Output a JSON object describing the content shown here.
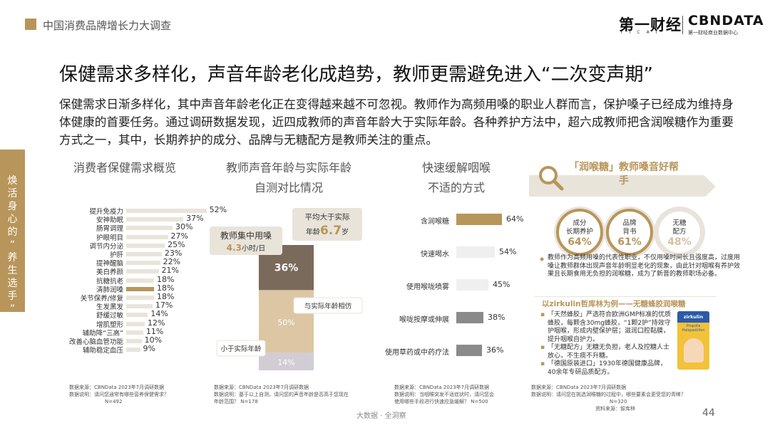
{
  "header": {
    "report_title": "中国消费品牌增长力大调查",
    "logo_yicai": "第一财经",
    "logo_yicai_sub": "YICAI",
    "logo_cbn": "CBNDATA",
    "logo_cbn_sub": "第一财经商业数据中心"
  },
  "headline": "保健需求多样化，声音年龄老化成趋势，教师更需避免进入“二次变声期”",
  "intro": "保健需求日渐多样化，其中声音年龄老化正在变得越来越不可忽视。教师作为高频用嗓的职业人群而言，保护嗓子已经成为维持身体健康的首要任务。通过调研数据发现，近四成教师的声音年龄大于实际年龄。各种养护方法中，超六成教师把含润喉糖作为重要方式之一，其中，长期养护的成分、品牌与无糖配方是教师关注的重点。",
  "side_tab": "焕活身心的“养生选手”",
  "chart_data": [
    {
      "type": "bar",
      "title": "消费者保健需求概览",
      "categories": [
        "提升免疫力",
        "安神助眠",
        "肠胃调理",
        "护眼明目",
        "调节内分泌",
        "护肝",
        "提神醒脑",
        "美白养颜",
        "抗糖抗老",
        "清肺润嗓",
        "关节保养/修复",
        "生发黑发",
        "舒缓过敏",
        "增肌塑形",
        "辅助降“三高”",
        "改善心脑血管功能",
        "辅助稳定血压"
      ],
      "values": [
        52,
        37,
        30,
        27,
        25,
        23,
        22,
        21,
        18,
        18,
        18,
        17,
        14,
        12,
        11,
        10,
        9
      ],
      "value_labels": [
        "52%",
        "37%",
        "30%",
        "27%",
        "25%",
        "23%",
        "22%",
        "21%",
        "18%",
        "18%",
        "18%",
        "17%",
        "14%",
        "12%",
        "11%",
        "10%",
        "9%"
      ],
      "highlight": "清肺润嗓",
      "note": [
        "数据来源：CBNData 2023年7月调研数据",
        "数据说明：请问您通常有哪些营养保健需求？",
        "N=492"
      ]
    },
    {
      "type": "bar",
      "title": "教师声音年龄与实际年龄自测对比情况",
      "categories": [
        "与实际年龄相仿",
        "大于实际年龄",
        "小于实际年龄"
      ],
      "values": [
        50,
        36,
        14
      ],
      "value_labels": [
        "50%",
        "36%",
        "14%"
      ],
      "callout_usage": {
        "label": "教师集中用嗓",
        "value": "4.3",
        "unit": "小时/日"
      },
      "callout_age": {
        "label": "平均大于实际",
        "prefix": "年龄",
        "value": "6.7",
        "unit": "岁"
      },
      "note": [
        "数据来源：CBNData 2023年7月调研数据",
        "数据说明：基于以上自测，请问您的声音年龄是否高于您现在",
        "年龄范围？ N=178"
      ]
    },
    {
      "type": "bar",
      "title": "快速缓解咽喉不适的方式",
      "categories": [
        "含润喉糖",
        "快速喝水",
        "使用喉咙喷雾",
        "喉咙按摩或伸展",
        "使用草药或中药疗法"
      ],
      "values": [
        64,
        54,
        45,
        38,
        36
      ],
      "value_labels": [
        "64%",
        "54%",
        "45%",
        "38%",
        "36%"
      ],
      "note": [
        "数据来源：CBNData 2023年7月调研数据",
        "数据说明：当咽喉突发不适症状时，请问您会",
        "使用哪些手段进行快速应急缓解？ N=500"
      ]
    },
    {
      "type": "bar",
      "title": "「润喉糖」教师嗓音好帮手",
      "categories": [
        "成分长期养护",
        "品牌背书",
        "无糖配方"
      ],
      "values": [
        64,
        61,
        48
      ],
      "value_labels": [
        "64%",
        "61%",
        "48%"
      ],
      "note": [
        "数据来源：CBNData 2023年7月调研数据",
        "数据说明：请问您在挑选润喉糖的过程中，哪些要素会更受您的青睐？",
        "N=320",
        "资料来源：智库林"
      ]
    }
  ],
  "right_panel": {
    "text1": "教师作为高频用嗓的代表性职业，不仅用嗓时间长且强度高，过度用嗓让教师群体出现声音年龄明显老化的现象，由此针对咽喉有养护效果且长期食用无负担的润喉糖，成为了新晋的教师职场必备。",
    "zirk_title": "以zirkulin哲库林为例——无糖蜂胶润喉糖",
    "item1": "「天然蜂胶」严选符合欧洲GMP标准的优质蜂胶，每颗含30mg蜂胶，“1颗2护”持效守护咽喉，形成内壁保护层；滋润口腔黏膜，提升咽喉自护力。",
    "item2": "「无糖配方」无糖无负担，老人及控糖人士放心，不生痰不升糖。",
    "item3": "「德国原装进口」1930年德国健康品牌，40余年专研品质配方。",
    "product_brand": "zirkulin",
    "product_name": "Propolis Halspastillen"
  },
  "footer": {
    "center": "大数据 · 全洞察",
    "page": "44"
  },
  "colors": {
    "accent": "#b8955a",
    "bar_light": "#e9e4da",
    "dark_segment": "#7a6a5c",
    "mid_segment": "#dcc6a4",
    "light_segment": "#d2ccd4"
  }
}
